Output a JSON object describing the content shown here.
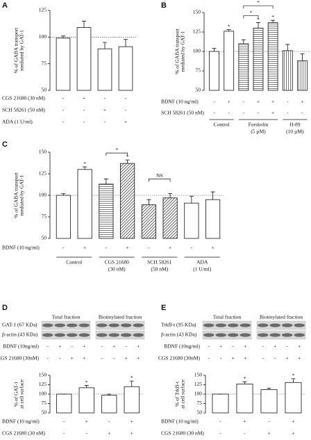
{
  "chart_data": [
    {
      "panel": "A",
      "type": "bar",
      "y_label": [
        "% of GABA transport",
        "mediated by GAT-1"
      ],
      "ylim": [
        50,
        125
      ],
      "yticks": [
        50,
        75,
        100,
        125
      ],
      "reference_line": 100,
      "values": [
        99,
        109,
        89,
        91
      ],
      "errors": [
        2,
        6,
        6,
        7
      ],
      "patterns": [
        "none",
        "none",
        "none",
        "none"
      ],
      "significance": [
        null,
        null,
        null,
        null
      ],
      "rows": [
        {
          "label": "CGS 21680 (30 nM)",
          "signs": [
            "-",
            "+",
            "-",
            "-"
          ]
        },
        {
          "label": "SCH 58261 (50 nM)",
          "signs": [
            "-",
            "-",
            "+",
            "-"
          ]
        },
        {
          "label": "ADA (1 U/ml)",
          "signs": [
            "-",
            "-",
            "-",
            "+"
          ]
        }
      ]
    },
    {
      "panel": "B",
      "type": "bar",
      "y_label": [
        "% of GABA transport",
        "mediated by GAT-1"
      ],
      "ylim": [
        50,
        150
      ],
      "yticks": [
        50,
        75,
        100,
        125,
        150
      ],
      "reference_line": 100,
      "values": [
        100,
        126,
        110,
        130,
        137,
        101,
        88
      ],
      "errors": [
        4,
        2,
        5,
        7,
        3,
        8,
        9
      ],
      "patterns": [
        "none",
        "none",
        "horizontal",
        "horizontal",
        "horizontal",
        "vertical",
        "vertical"
      ],
      "significance": [
        null,
        "*",
        null,
        "*",
        "*",
        null,
        null
      ],
      "comparisons": [
        {
          "bars": [
            2,
            3
          ],
          "label": "*"
        },
        {
          "bars": [
            2,
            4
          ],
          "label": "*"
        }
      ],
      "rows": [
        {
          "label": "BDNF (10 ng/ml)",
          "signs": [
            "-",
            "+",
            "-",
            "+",
            "+",
            "-",
            "+"
          ]
        },
        {
          "label": "SCH 58261 (50 nM)",
          "signs": [
            "-",
            "-",
            "-",
            "-",
            "+",
            "-",
            "-"
          ]
        }
      ],
      "groups": [
        {
          "label": [
            "Control"
          ],
          "bars": [
            0,
            1
          ]
        },
        {
          "label": [
            "Forskolin",
            "(5 µM)"
          ],
          "bars": [
            2,
            4
          ]
        },
        {
          "label": [
            "H-89",
            "(10 µM)"
          ],
          "bars": [
            5,
            6
          ]
        }
      ]
    },
    {
      "panel": "C",
      "type": "bar",
      "y_label": [
        "% of GABA transport",
        "mediated by GAT-1"
      ],
      "ylim": [
        50,
        150
      ],
      "yticks": [
        50,
        75,
        100,
        125,
        150
      ],
      "reference_line": 100,
      "values": [
        100,
        130,
        113,
        137,
        89,
        97,
        91,
        95
      ],
      "errors": [
        2,
        3,
        6,
        4,
        6,
        5,
        8,
        9
      ],
      "patterns": [
        "none",
        "none",
        "horizontal",
        "diagonal",
        "diagonal",
        "diagonal",
        "none",
        "none"
      ],
      "significance": [
        null,
        "*",
        null,
        "*",
        null,
        null,
        null,
        null
      ],
      "comparisons": [
        {
          "bars": [
            2,
            3
          ],
          "label": "*"
        },
        {
          "bars": [
            4,
            5
          ],
          "label": "NS"
        }
      ],
      "rows": [
        {
          "label": "BDNF (10 ng/ml)",
          "signs": [
            "-",
            "+",
            "-",
            "+",
            "-",
            "+",
            "-",
            "+"
          ]
        }
      ],
      "groups": [
        {
          "label": [
            "Control"
          ],
          "bars": [
            0,
            1
          ]
        },
        {
          "label": [
            "CGS 21680",
            "(30 nM)"
          ],
          "bars": [
            2,
            3
          ]
        },
        {
          "label": [
            "SCH 58261",
            "(50 nM)"
          ],
          "bars": [
            4,
            5
          ]
        },
        {
          "label": [
            "ADA",
            "(1 U/ml)"
          ],
          "bars": [
            6,
            7
          ]
        }
      ]
    },
    {
      "panel": "D",
      "type": "bar",
      "y_label": [
        "% of GAT-1",
        "at cell surface"
      ],
      "ylim": [
        50,
        150
      ],
      "yticks": [
        50,
        75,
        100,
        125,
        150
      ],
      "reference_line": 100,
      "values": [
        100,
        117,
        97,
        120
      ],
      "errors": [
        0,
        6,
        3,
        15
      ],
      "patterns": [
        "none",
        "none",
        "none",
        "none"
      ],
      "significance": [
        null,
        "*",
        null,
        "*"
      ],
      "rows": [
        {
          "label": "BDNF (10 ng/ml)",
          "signs": [
            "-",
            "+",
            "-",
            "+"
          ]
        },
        {
          "label": "CGS 21680 (30 nM)",
          "signs": [
            "-",
            "-",
            "+",
            "+"
          ]
        }
      ],
      "blot": {
        "fractions": [
          "Total fraction",
          "Biotinylated fraction"
        ],
        "bands": [
          "GAT-1 (67 KDa)",
          "β-actin (43 KDa)"
        ],
        "rows": [
          {
            "label": "BDNF (10ng/ml)",
            "signs": [
              "-",
              "+",
              "-",
              "+",
              "-",
              "+",
              "-",
              "+"
            ]
          },
          {
            "label": "CGS 21680 (30nM)",
            "signs": [
              "-",
              "-",
              "+",
              "+",
              "-",
              "-",
              "+",
              "+"
            ]
          }
        ]
      }
    },
    {
      "panel": "E",
      "type": "bar",
      "y_label": [
        "% of TrkB-t",
        "at cell surface"
      ],
      "ylim": [
        50,
        150
      ],
      "yticks": [
        50,
        75,
        100,
        125,
        150
      ],
      "reference_line": 100,
      "values": [
        100,
        127,
        112,
        131
      ],
      "errors": [
        0,
        6,
        4,
        10
      ],
      "patterns": [
        "none",
        "none",
        "none",
        "none"
      ],
      "significance": [
        null,
        "*",
        null,
        "*"
      ],
      "rows": [
        {
          "label": "BDNF (10 ng/ml)",
          "signs": [
            "-",
            "+",
            "-",
            "+"
          ]
        },
        {
          "label": "CGS 21680 (30 nM)",
          "signs": [
            "-",
            "-",
            "+",
            "+"
          ]
        }
      ],
      "blot": {
        "fractions": [
          "Total fraction",
          "Biotinylated fraction"
        ],
        "bands": [
          "TrkB-t (95 KDa)",
          "β-actin (43 KDa)"
        ],
        "rows": [
          {
            "label": "BDNF (10ng/ml)",
            "signs": [
              "-",
              "+",
              "-",
              "+",
              "-",
              "+",
              "-",
              "+"
            ]
          },
          {
            "label": "CGS 21680 (30nM)",
            "signs": [
              "-",
              "-",
              "+",
              "+",
              "-",
              "-",
              "+",
              "+"
            ]
          }
        ]
      }
    }
  ]
}
